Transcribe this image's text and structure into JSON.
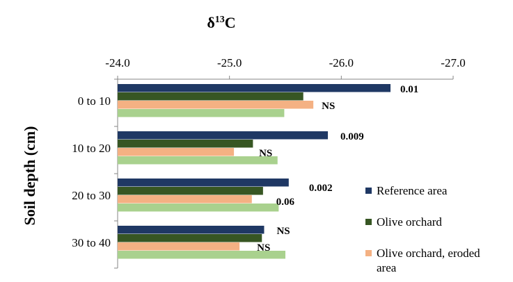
{
  "chart_data": {
    "type": "bar",
    "orientation": "horizontal",
    "title": "δ¹³C",
    "title_main": "δ",
    "title_sup": "13",
    "title_tail": "C",
    "ylabel": "Soil depth (cm)",
    "xlim": [
      -24.0,
      -27.0
    ],
    "xticks": [
      "-24.0",
      "-25.0",
      "-26.0",
      "-27.0"
    ],
    "categories": [
      "0 to 10",
      "10 to 20",
      "20 to 30",
      "30 to 40"
    ],
    "series": [
      {
        "name": "Reference area",
        "color": "#1F3864",
        "values": [
          -26.44,
          -25.88,
          -25.53,
          -25.31
        ]
      },
      {
        "name": "Olive orchard",
        "color": "#375623",
        "values": [
          -25.66,
          -25.21,
          -25.3,
          -25.29
        ]
      },
      {
        "name": "Olive orchard, eroded area",
        "color": "#F4B183",
        "values": [
          -25.75,
          -25.04,
          -25.2,
          -25.09
        ]
      },
      {
        "name": "",
        "color": "#A9D18E",
        "values": [
          -25.49,
          -25.43,
          -25.44,
          -25.5
        ]
      }
    ],
    "annotations": [
      "0.01",
      "NS",
      "0.009",
      "NS",
      "0.002",
      "0.06",
      "NS",
      "NS"
    ],
    "legend_position": "right"
  }
}
